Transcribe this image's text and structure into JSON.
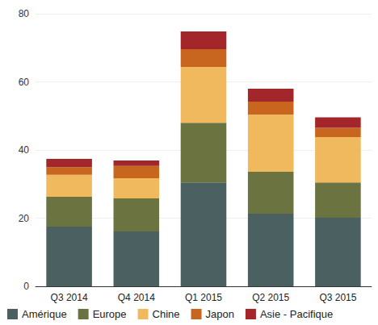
{
  "chart_data": {
    "type": "bar",
    "stacked": true,
    "categories": [
      "Q3 2014",
      "Q4 2014",
      "Q1 2015",
      "Q2 2015",
      "Q3 2015"
    ],
    "series": [
      {
        "name": "Amérique",
        "color": "#4b6161",
        "values": [
          17.5,
          16.1,
          30.5,
          21.3,
          20.1
        ]
      },
      {
        "name": "Europe",
        "color": "#6b7340",
        "values": [
          8.8,
          9.7,
          17.5,
          12.3,
          10.4
        ]
      },
      {
        "name": "Chine",
        "color": "#f0b95e",
        "values": [
          6.4,
          5.9,
          16.4,
          16.8,
          13.3
        ]
      },
      {
        "name": "Japon",
        "color": "#c8651f",
        "values": [
          2.3,
          3.6,
          5.2,
          3.8,
          2.7
        ]
      },
      {
        "name": "Asie - Pacifique",
        "color": "#a3262a",
        "values": [
          2.4,
          1.6,
          5.2,
          3.8,
          3.1
        ]
      }
    ],
    "ylim": [
      0,
      80
    ],
    "yticks": [
      0,
      20,
      40,
      60,
      80
    ],
    "grid": true,
    "legend": "bottom"
  }
}
